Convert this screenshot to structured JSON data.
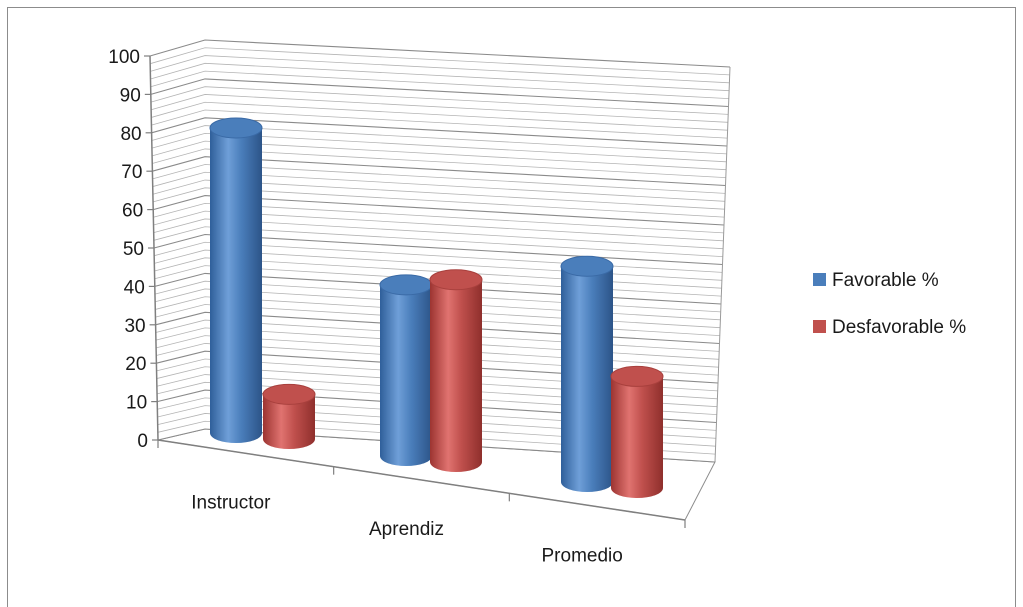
{
  "chart_data": {
    "type": "bar",
    "categories": [
      "Instructor",
      "Aprendiz",
      "Promedio"
    ],
    "series": [
      {
        "name": "Favorable %",
        "values": [
          82,
          46,
          58
        ],
        "color": "#4a7ebb"
      },
      {
        "name": "Desfavorable %",
        "values": [
          12,
          49,
          30
        ],
        "color": "#c0504d"
      }
    ],
    "ylim": [
      0,
      100
    ],
    "yticks": [
      0,
      10,
      20,
      30,
      40,
      50,
      60,
      70,
      80,
      90,
      100
    ],
    "grid": true,
    "legend_position": "right",
    "style": "3d-cylinder"
  }
}
